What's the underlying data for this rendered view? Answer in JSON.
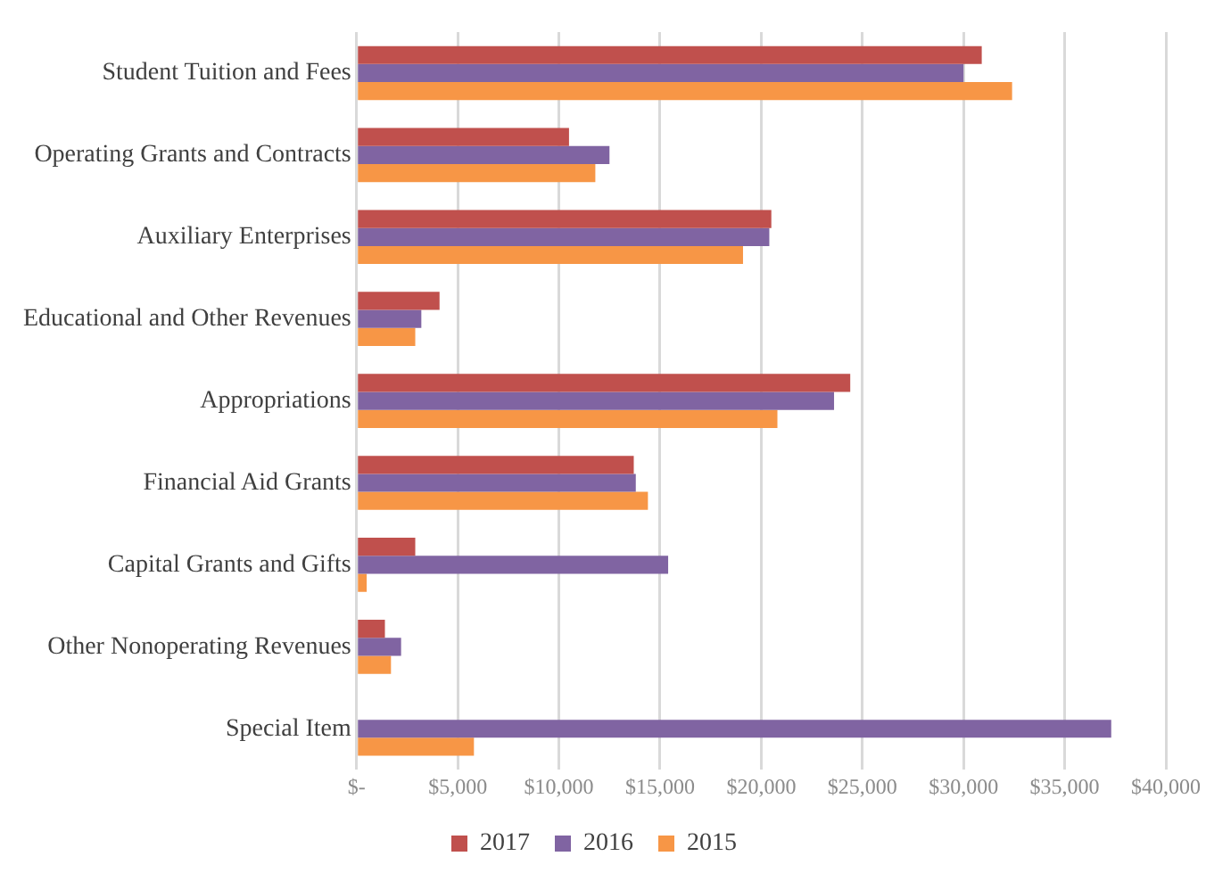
{
  "chart_data": {
    "type": "bar",
    "orientation": "horizontal",
    "categories": [
      "Student Tuition and Fees",
      "Operating Grants and Contracts",
      "Auxiliary Enterprises",
      "Educational and Other Revenues",
      "Appropriations",
      "Financial Aid Grants",
      "Capital Grants and Gifts",
      "Other Nonoperating Revenues",
      "Special Item"
    ],
    "series": [
      {
        "name": "2017",
        "color": "#c0504d",
        "values": [
          30900,
          10500,
          20500,
          4100,
          24400,
          13700,
          2900,
          1400,
          null
        ]
      },
      {
        "name": "2016",
        "color": "#8064a2",
        "values": [
          30000,
          12500,
          20400,
          3200,
          23600,
          13800,
          15400,
          2200,
          37300
        ]
      },
      {
        "name": "2015",
        "color": "#f79646",
        "values": [
          32400,
          11800,
          19100,
          2900,
          20800,
          14400,
          500,
          1700,
          5800
        ]
      }
    ],
    "xlim": [
      0,
      40000
    ],
    "xticks": [
      {
        "value": 0,
        "label": "$-"
      },
      {
        "value": 5000,
        "label": "$5,000"
      },
      {
        "value": 10000,
        "label": "$10,000"
      },
      {
        "value": 15000,
        "label": "$15,000"
      },
      {
        "value": 20000,
        "label": "$20,000"
      },
      {
        "value": 25000,
        "label": "$25,000"
      },
      {
        "value": 30000,
        "label": "$30,000"
      },
      {
        "value": 35000,
        "label": "$35,000"
      },
      {
        "value": 40000,
        "label": "$40,000"
      }
    ],
    "grid": "x",
    "legend": "bottom"
  }
}
